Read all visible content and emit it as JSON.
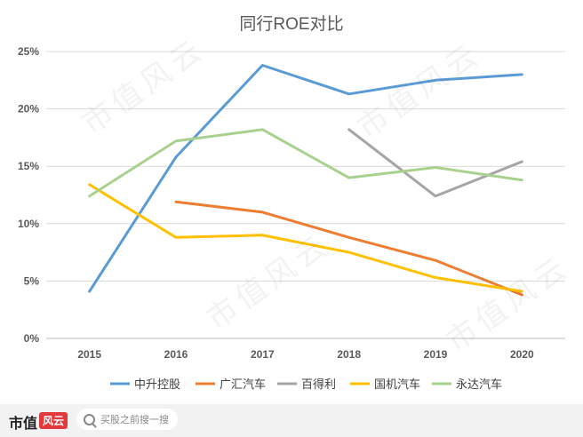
{
  "chart_data": {
    "type": "line",
    "title": "同行ROE对比",
    "xlabel": "",
    "ylabel": "",
    "categories": [
      "2015",
      "2016",
      "2017",
      "2018",
      "2019",
      "2020"
    ],
    "y_ticks": [
      "0%",
      "5%",
      "10%",
      "15%",
      "20%",
      "25%"
    ],
    "ylim": [
      0,
      25
    ],
    "grid": true,
    "legend_position": "bottom",
    "series": [
      {
        "name": "中升控股",
        "color": "#5b9bd5",
        "values": [
          4.1,
          15.8,
          23.8,
          21.3,
          22.5,
          23.0
        ]
      },
      {
        "name": "广汇汽车",
        "color": "#ed7d31",
        "values": [
          null,
          11.9,
          11.0,
          8.8,
          6.8,
          3.8
        ]
      },
      {
        "name": "百得利",
        "color": "#a5a5a5",
        "values": [
          null,
          null,
          null,
          18.2,
          12.4,
          15.4
        ]
      },
      {
        "name": "国机汽车",
        "color": "#ffc000",
        "values": [
          13.4,
          8.8,
          9.0,
          7.5,
          5.3,
          4.1
        ]
      },
      {
        "name": "永达汽车",
        "color": "#a9d18e",
        "values": [
          12.4,
          17.2,
          18.2,
          14.0,
          14.9,
          13.8
        ]
      }
    ]
  },
  "watermark": "市值风云",
  "footer": {
    "brand_text": "市值",
    "brand_mark": "风云",
    "search_icon": "search-icon",
    "search_placeholder": "买股之前搜一搜"
  }
}
